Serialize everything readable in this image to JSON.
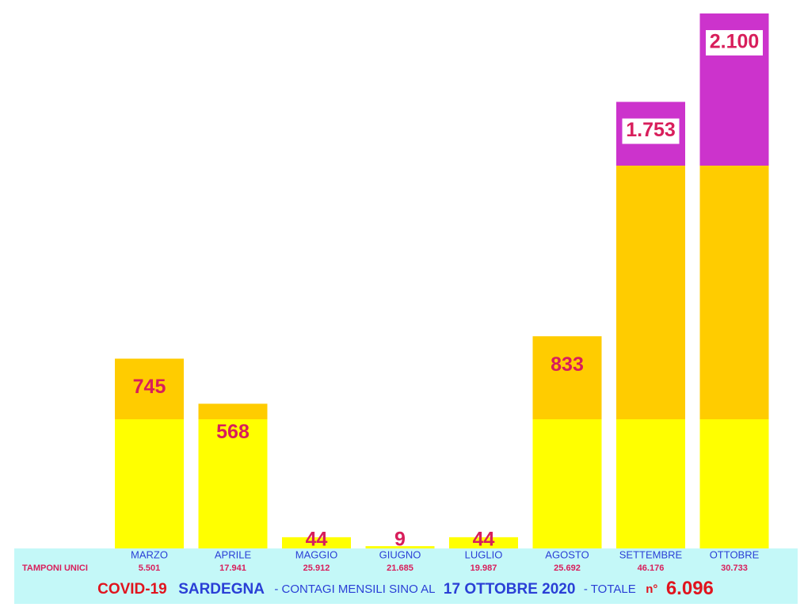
{
  "chart_data": {
    "type": "bar",
    "categories": [
      "MARZO",
      "APRILE",
      "MAGGIO",
      "GIUGNO",
      "LUGLIO",
      "AGOSTO",
      "SETTEMBRE",
      "OTTOBRE"
    ],
    "values": [
      745,
      568,
      44,
      9,
      44,
      833,
      1753,
      2100
    ],
    "value_labels": [
      "745",
      "568",
      "44",
      "9",
      "44",
      "833",
      "1.753",
      "2.100"
    ],
    "tamponi": {
      "label": "TAMPONI UNICI",
      "values": [
        5501,
        17941,
        25912,
        21685,
        19987,
        25692,
        46176,
        30733
      ],
      "value_labels": [
        "5.501",
        "17.941",
        "25.912",
        "21.685",
        "19.987",
        "25.692",
        "46.176",
        "30.733"
      ]
    },
    "footer": {
      "covid": "COVID-19",
      "region": "SARDEGNA",
      "text": "-  CONTAGI MENSILI SINO AL",
      "date": "17 OTTOBRE 2020",
      "total_label": "-  TOTALE",
      "number_sign": "n°",
      "total": 6096,
      "total_label_value": "6.096"
    }
  }
}
